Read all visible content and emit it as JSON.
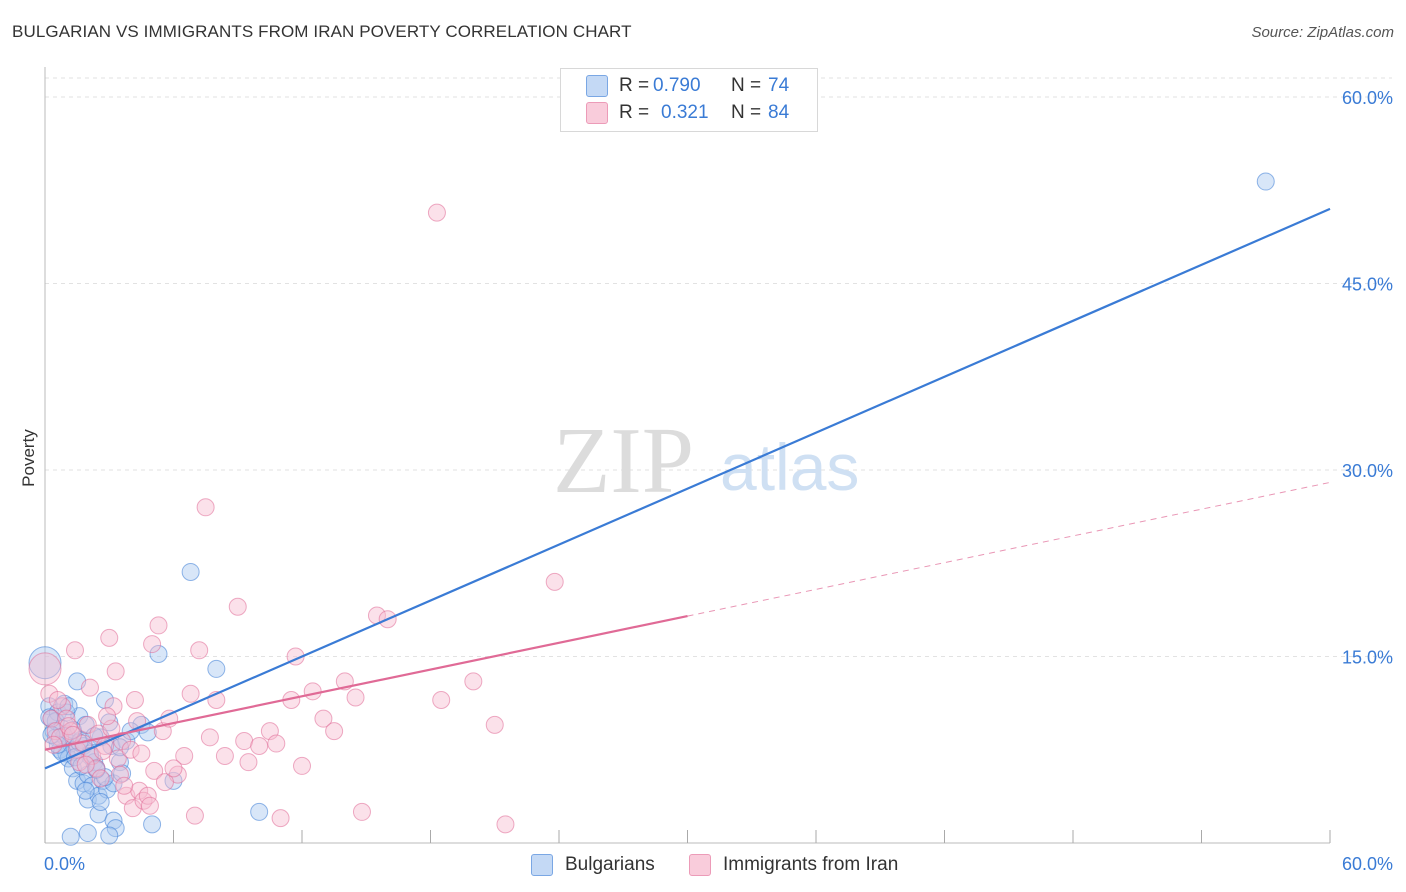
{
  "title": "BULGARIAN VS IMMIGRANTS FROM IRAN POVERTY CORRELATION CHART",
  "source": "Source: ZipAtlas.com",
  "watermark": {
    "part1": "ZIP",
    "part2": "atlas"
  },
  "colors": {
    "blue": "#3a7bd5",
    "blue_fill": "#a8c8f0",
    "pink": "#e06a96",
    "pink_fill": "#f6bcd0",
    "grid": "#e2e2e2",
    "axis_label": "#3a7bd5"
  },
  "legend": {
    "rows": [
      {
        "r_label": "R =",
        "r_value": "0.790",
        "n_label": "N =",
        "n_value": "74"
      },
      {
        "r_label": "R =",
        "r_value": "0.321",
        "n_label": "N =",
        "n_value": "84"
      }
    ]
  },
  "bottom_legend": {
    "series1": "Bulgarians",
    "series2": "Immigrants from Iran"
  },
  "chart_data": {
    "type": "scatter",
    "ylabel": "Poverty",
    "xlim": [
      0,
      60
    ],
    "ylim": [
      0,
      60
    ],
    "x_tick_labels": [
      "0.0%",
      "60.0%"
    ],
    "y_ticks": [
      15,
      30,
      45,
      60
    ],
    "y_tick_labels": [
      "15.0%",
      "30.0%",
      "45.0%",
      "60.0%"
    ],
    "series": [
      {
        "name": "Bulgarians",
        "r": 0.79,
        "n": 74,
        "trend": {
          "x0": 0,
          "y0": 6.0,
          "x1": 60,
          "y1": 51.0,
          "solid_until": 60
        },
        "points": [
          [
            0.0,
            14.5
          ],
          [
            0.2,
            11.0
          ],
          [
            0.3,
            10.0
          ],
          [
            0.4,
            9.0
          ],
          [
            0.5,
            8.5
          ],
          [
            0.6,
            10.5
          ],
          [
            0.7,
            7.5
          ],
          [
            0.8,
            9.2
          ],
          [
            0.9,
            11.2
          ],
          [
            1.0,
            8.8
          ],
          [
            1.0,
            7.2
          ],
          [
            1.1,
            6.8
          ],
          [
            1.2,
            8.0
          ],
          [
            1.3,
            6.0
          ],
          [
            1.4,
            7.5
          ],
          [
            1.5,
            13.0
          ],
          [
            1.5,
            5.0
          ],
          [
            1.6,
            10.2
          ],
          [
            1.7,
            8.3
          ],
          [
            1.8,
            7.8
          ],
          [
            1.8,
            4.8
          ],
          [
            1.9,
            9.5
          ],
          [
            2.0,
            5.5
          ],
          [
            2.0,
            3.5
          ],
          [
            2.1,
            7.2
          ],
          [
            2.2,
            4.6
          ],
          [
            2.3,
            6.5
          ],
          [
            2.4,
            6.0
          ],
          [
            2.5,
            2.3
          ],
          [
            2.5,
            3.8
          ],
          [
            2.6,
            8.5
          ],
          [
            2.7,
            5.0
          ],
          [
            2.8,
            11.5
          ],
          [
            2.9,
            4.3
          ],
          [
            3.0,
            9.7
          ],
          [
            3.1,
            7.8
          ],
          [
            3.2,
            1.8
          ],
          [
            3.2,
            4.8
          ],
          [
            3.3,
            1.2
          ],
          [
            3.5,
            6.5
          ],
          [
            3.8,
            8.2
          ],
          [
            4.5,
            9.5
          ],
          [
            4.8,
            8.9
          ],
          [
            5.0,
            1.5
          ],
          [
            5.3,
            15.2
          ],
          [
            6.0,
            5.0
          ],
          [
            6.8,
            21.8
          ],
          [
            8.0,
            14.0
          ],
          [
            10.0,
            2.5
          ],
          [
            1.2,
            0.5
          ],
          [
            2.0,
            0.8
          ],
          [
            3.0,
            0.6
          ],
          [
            0.5,
            9.8
          ],
          [
            1.0,
            10.5
          ],
          [
            1.6,
            8.1
          ],
          [
            2.1,
            7.0
          ],
          [
            0.8,
            7.3
          ],
          [
            1.4,
            6.9
          ],
          [
            2.3,
            8.6
          ],
          [
            3.5,
            7.7
          ],
          [
            1.1,
            11.0
          ],
          [
            0.9,
            8.6
          ],
          [
            1.7,
            6.2
          ],
          [
            2.8,
            5.3
          ],
          [
            0.6,
            7.9
          ],
          [
            1.9,
            4.2
          ],
          [
            2.6,
            3.3
          ],
          [
            4.0,
            9.0
          ],
          [
            0.3,
            8.7
          ],
          [
            0.2,
            10.1
          ],
          [
            1.3,
            9.1
          ],
          [
            2.4,
            5.9
          ],
          [
            57.0,
            53.2
          ],
          [
            3.6,
            5.6
          ]
        ]
      },
      {
        "name": "Immigrants from Iran",
        "r": 0.321,
        "n": 84,
        "trend": {
          "x0": 0,
          "y0": 7.5,
          "x1": 60,
          "y1": 29.0,
          "solid_until": 30
        },
        "points": [
          [
            0.0,
            14.0
          ],
          [
            0.2,
            12.0
          ],
          [
            0.3,
            10.0
          ],
          [
            0.5,
            9.0
          ],
          [
            0.7,
            8.5
          ],
          [
            0.8,
            11.0
          ],
          [
            1.0,
            10.0
          ],
          [
            1.2,
            9.0
          ],
          [
            1.4,
            15.5
          ],
          [
            1.5,
            7.5
          ],
          [
            1.6,
            6.5
          ],
          [
            1.8,
            8.0
          ],
          [
            2.0,
            9.5
          ],
          [
            2.2,
            7.0
          ],
          [
            2.4,
            6.0
          ],
          [
            2.5,
            8.8
          ],
          [
            2.6,
            5.2
          ],
          [
            2.8,
            7.8
          ],
          [
            3.0,
            16.5
          ],
          [
            3.1,
            9.2
          ],
          [
            3.2,
            11.0
          ],
          [
            3.4,
            6.8
          ],
          [
            3.5,
            5.5
          ],
          [
            3.6,
            8.2
          ],
          [
            3.8,
            3.8
          ],
          [
            4.0,
            7.5
          ],
          [
            4.1,
            2.8
          ],
          [
            4.2,
            11.5
          ],
          [
            4.4,
            4.2
          ],
          [
            4.5,
            7.2
          ],
          [
            4.6,
            3.4
          ],
          [
            4.8,
            3.8
          ],
          [
            4.9,
            3.0
          ],
          [
            5.0,
            16.0
          ],
          [
            5.1,
            5.8
          ],
          [
            5.3,
            17.5
          ],
          [
            5.5,
            9.0
          ],
          [
            5.8,
            10.0
          ],
          [
            6.2,
            5.5
          ],
          [
            6.5,
            7.0
          ],
          [
            6.8,
            12.0
          ],
          [
            7.0,
            2.2
          ],
          [
            7.2,
            15.5
          ],
          [
            7.5,
            27.0
          ],
          [
            7.7,
            8.5
          ],
          [
            8.0,
            11.5
          ],
          [
            8.4,
            7.0
          ],
          [
            9.0,
            19.0
          ],
          [
            9.3,
            8.2
          ],
          [
            9.5,
            6.5
          ],
          [
            10.0,
            7.8
          ],
          [
            10.5,
            9.0
          ],
          [
            10.8,
            8.0
          ],
          [
            11.0,
            2.0
          ],
          [
            11.5,
            11.5
          ],
          [
            11.7,
            15.0
          ],
          [
            12.0,
            6.2
          ],
          [
            12.5,
            12.2
          ],
          [
            13.0,
            10.0
          ],
          [
            13.5,
            9.0
          ],
          [
            14.0,
            13.0
          ],
          [
            14.5,
            11.7
          ],
          [
            14.8,
            2.5
          ],
          [
            15.5,
            18.3
          ],
          [
            16.0,
            18.0
          ],
          [
            18.5,
            11.5
          ],
          [
            20.0,
            13.0
          ],
          [
            21.0,
            9.5
          ],
          [
            21.5,
            1.5
          ],
          [
            23.8,
            21.0
          ],
          [
            18.3,
            50.7
          ],
          [
            0.4,
            7.9
          ],
          [
            1.1,
            9.4
          ],
          [
            1.9,
            6.3
          ],
          [
            2.9,
            10.2
          ],
          [
            3.7,
            4.6
          ],
          [
            4.3,
            9.8
          ],
          [
            5.6,
            4.9
          ],
          [
            6.0,
            6.0
          ],
          [
            2.1,
            12.5
          ],
          [
            3.3,
            13.8
          ],
          [
            0.6,
            11.5
          ],
          [
            1.3,
            8.7
          ],
          [
            2.7,
            7.4
          ]
        ]
      }
    ]
  }
}
